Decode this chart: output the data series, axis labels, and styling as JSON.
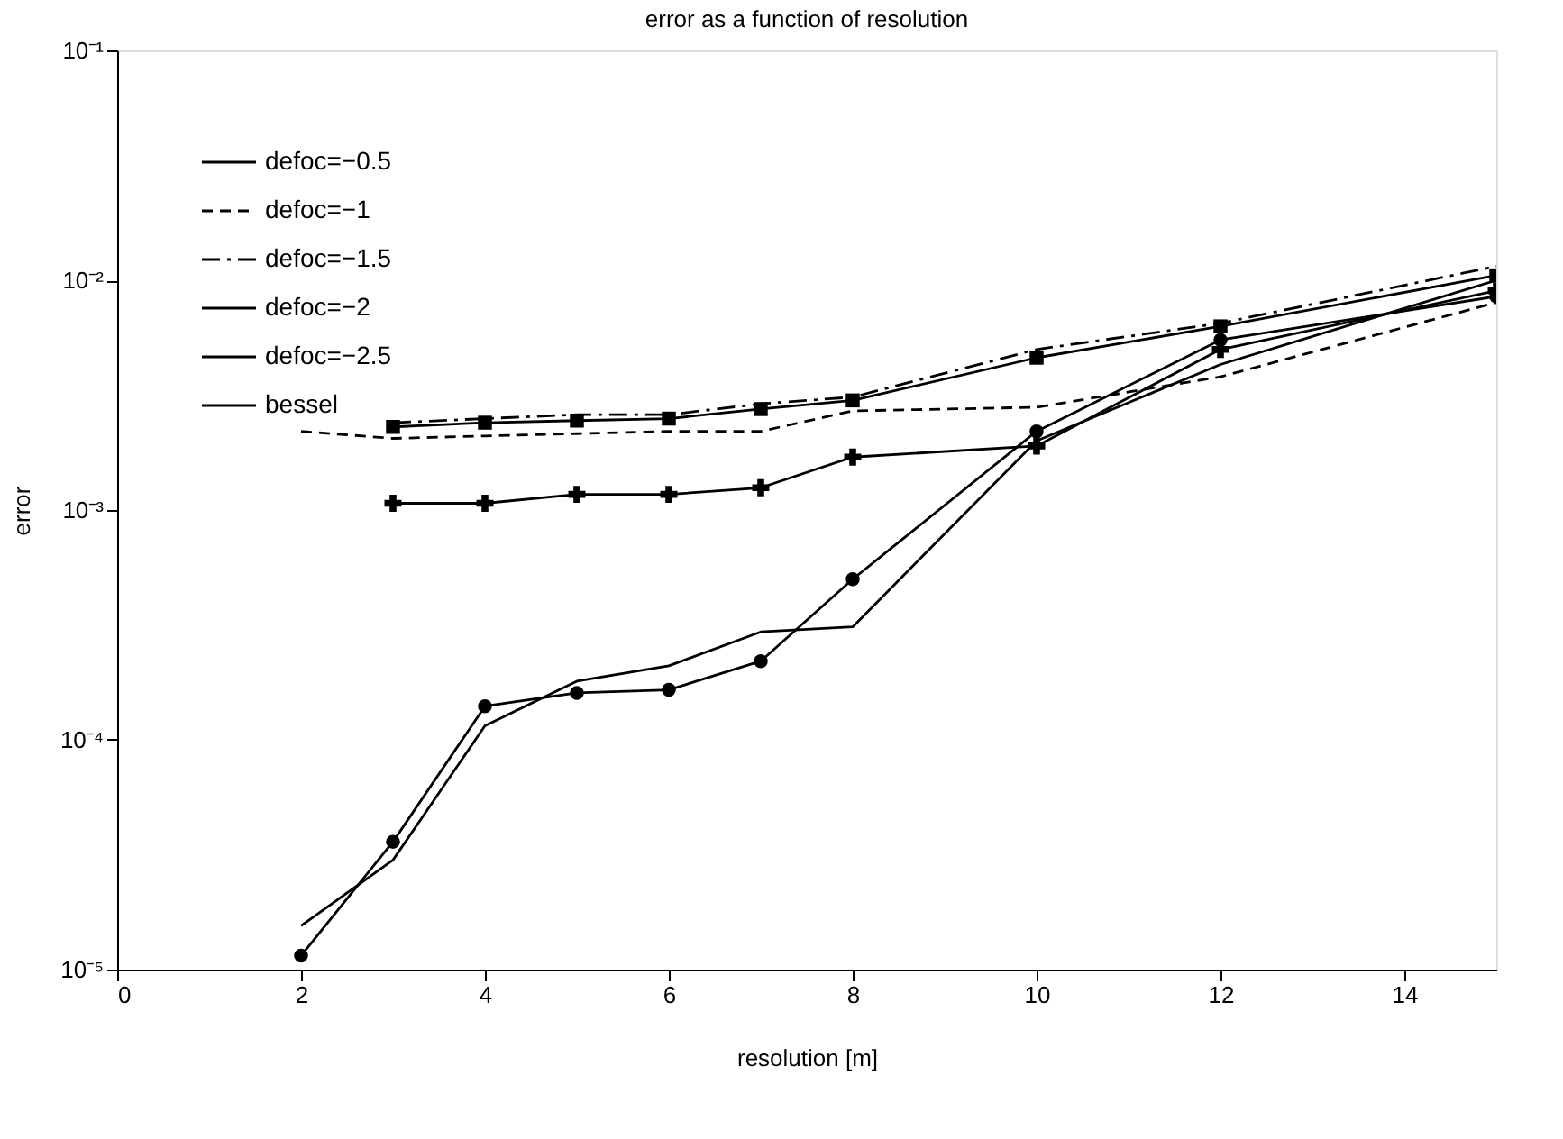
{
  "chart_data": {
    "type": "line",
    "title": "error as a function of resolution",
    "xlabel": "resolution [m]",
    "ylabel": "error",
    "log": "y",
    "grid": false,
    "legend": "top left",
    "xlim": [
      0,
      15
    ],
    "xticks": [
      0,
      2,
      4,
      6,
      8,
      10,
      12,
      14
    ],
    "ylim": [
      1e-05,
      0.1
    ],
    "yticks": [
      {
        "value": 1e-05,
        "label": "10⁻⁵"
      },
      {
        "value": 0.0001,
        "label": "10⁻⁴"
      },
      {
        "value": 0.001,
        "label": "10⁻³"
      },
      {
        "value": 0.01,
        "label": "10⁻²"
      },
      {
        "value": 0.1,
        "label": "10⁻¹"
      }
    ],
    "series": [
      {
        "name": "defoc=−0.5",
        "color": "#000000",
        "line_style": "solid",
        "marker": "none",
        "x": [
          2,
          3,
          4,
          5,
          6,
          7,
          8,
          10,
          12,
          15
        ],
        "values": [
          1.55e-05,
          3e-05,
          0.000115,
          0.00018,
          0.00021,
          0.000295,
          0.00031,
          0.002,
          0.0043,
          0.01
        ]
      },
      {
        "name": "defoc=−1",
        "color": "#000000",
        "line_style": "dashed",
        "marker": "none",
        "x": [
          2,
          3,
          4,
          5,
          6,
          7,
          8,
          10,
          12,
          15
        ],
        "values": [
          0.0022,
          0.00205,
          0.0021,
          0.00215,
          0.0022,
          0.0022,
          0.0027,
          0.0028,
          0.0038,
          0.008
        ]
      },
      {
        "name": "defoc=−1.5",
        "color": "#000000",
        "line_style": "dashdot",
        "marker": "none",
        "x": [
          3,
          4,
          5,
          6,
          7,
          8,
          10,
          12,
          15
        ],
        "values": [
          0.0024,
          0.0025,
          0.0026,
          0.0026,
          0.0029,
          0.0031,
          0.005,
          0.0065,
          0.0115
        ]
      },
      {
        "name": "defoc=−2",
        "color": "#000000",
        "line_style": "solid",
        "marker": "cross",
        "x": [
          3,
          4,
          5,
          6,
          7,
          8,
          10,
          12,
          15
        ],
        "values": [
          0.00107,
          0.00107,
          0.00117,
          0.00117,
          0.00125,
          0.0017,
          0.0019,
          0.005,
          0.009
        ]
      },
      {
        "name": "defoc=−2.5",
        "color": "#000000",
        "line_style": "solid",
        "marker": "square",
        "x": [
          3,
          4,
          5,
          6,
          7,
          8,
          10,
          12,
          15
        ],
        "values": [
          0.0023,
          0.0024,
          0.00245,
          0.0025,
          0.00275,
          0.003,
          0.0046,
          0.0063,
          0.0105
        ]
      },
      {
        "name": "bessel",
        "color": "#000000",
        "line_style": "solid",
        "marker": "circle",
        "x": [
          2,
          3,
          4,
          5,
          6,
          7,
          8,
          10,
          12,
          15
        ],
        "values": [
          1.15e-05,
          3.6e-05,
          0.00014,
          0.00016,
          0.000165,
          0.00022,
          0.0005,
          0.0022,
          0.0055,
          0.0085
        ]
      }
    ]
  }
}
